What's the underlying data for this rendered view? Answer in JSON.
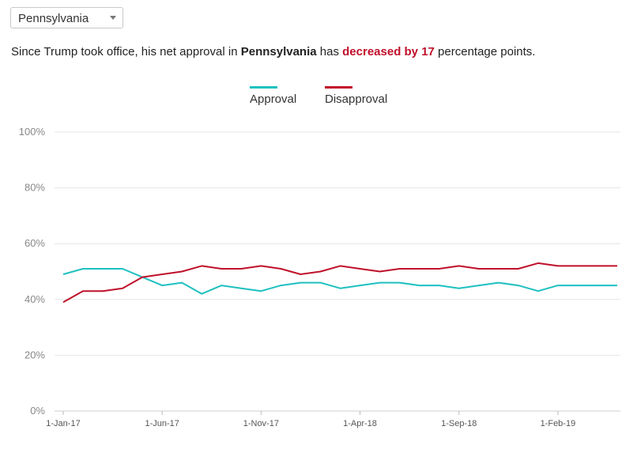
{
  "state_select": {
    "value": "Pennsylvania",
    "caret_icon": "chevron-down-icon"
  },
  "summary": {
    "prefix": "Since Trump took office, his net approval in ",
    "state": "Pennsylvania",
    "middle": " has ",
    "change": "decreased by 17",
    "suffix": " percentage points."
  },
  "colors": {
    "approval": "#1fc0c0",
    "disapproval": "#c0102a",
    "highlight": "#c0102a",
    "grid": "#e6e6e6"
  },
  "chart_data": {
    "type": "line",
    "legend": [
      "Approval",
      "Disapproval"
    ],
    "legend_position": "top-center",
    "x": [
      "1-Jan-17",
      "1-Feb-17",
      "1-Mar-17",
      "1-Apr-17",
      "1-May-17",
      "1-Jun-17",
      "1-Jul-17",
      "1-Aug-17",
      "1-Sep-17",
      "1-Oct-17",
      "1-Nov-17",
      "1-Dec-17",
      "1-Jan-18",
      "1-Feb-18",
      "1-Mar-18",
      "1-Apr-18",
      "1-May-18",
      "1-Jun-18",
      "1-Jul-18",
      "1-Aug-18",
      "1-Sep-18",
      "1-Oct-18",
      "1-Nov-18",
      "1-Dec-18",
      "1-Jan-19",
      "1-Feb-19",
      "1-Mar-19",
      "1-Apr-19",
      "1-May-19"
    ],
    "x_tick_labels": [
      "1-Jan-17",
      "1-Jun-17",
      "1-Nov-17",
      "1-Apr-18",
      "1-Sep-18",
      "1-Feb-19"
    ],
    "y_tick_labels": [
      "0%",
      "20%",
      "40%",
      "60%",
      "80%",
      "100%"
    ],
    "ylim": [
      0,
      100
    ],
    "grid": true,
    "series": [
      {
        "name": "Approval",
        "values": [
          49,
          51,
          51,
          51,
          48,
          45,
          46,
          42,
          45,
          44,
          43,
          45,
          46,
          46,
          44,
          45,
          46,
          46,
          45,
          45,
          44,
          45,
          46,
          45,
          43,
          45,
          45,
          45,
          45
        ]
      },
      {
        "name": "Disapproval",
        "values": [
          39,
          43,
          43,
          44,
          48,
          49,
          50,
          52,
          51,
          51,
          52,
          51,
          49,
          50,
          52,
          51,
          50,
          51,
          51,
          51,
          52,
          51,
          51,
          51,
          53,
          52,
          52,
          52,
          52
        ]
      }
    ]
  }
}
